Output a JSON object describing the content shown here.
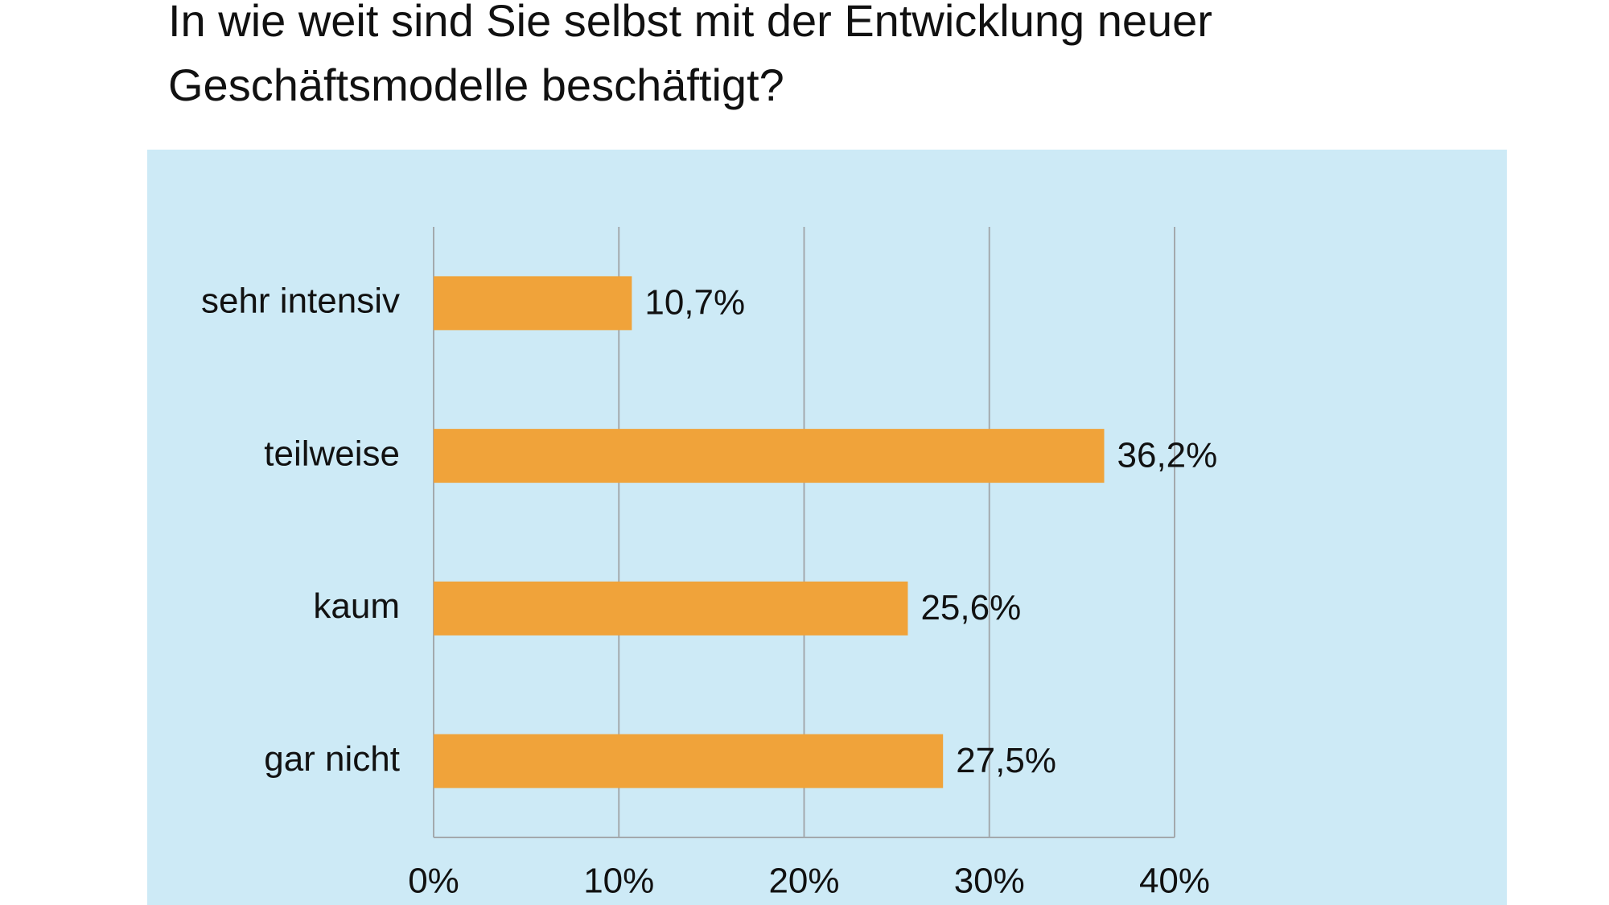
{
  "chart_data": {
    "type": "bar",
    "orientation": "horizontal",
    "title": "In wie weit sind Sie selbst mit der Entwicklung neuer Geschäftsmodelle beschäftigt?",
    "categories": [
      "sehr intensiv",
      "teilweise",
      "kaum",
      "gar nicht"
    ],
    "values": [
      10.7,
      36.2,
      25.6,
      27.5
    ],
    "value_labels": [
      "10,7%",
      "36,2%",
      "25,6%",
      "27,5%"
    ],
    "color": "#f0a33a",
    "xlim": [
      0,
      40
    ],
    "xticks": [
      {
        "value": 0,
        "label": "0%"
      },
      {
        "value": 10,
        "label": "10%"
      },
      {
        "value": 20,
        "label": "20%"
      },
      {
        "value": 30,
        "label": "30%"
      },
      {
        "value": 40,
        "label": "40%"
      }
    ],
    "grid": true
  }
}
